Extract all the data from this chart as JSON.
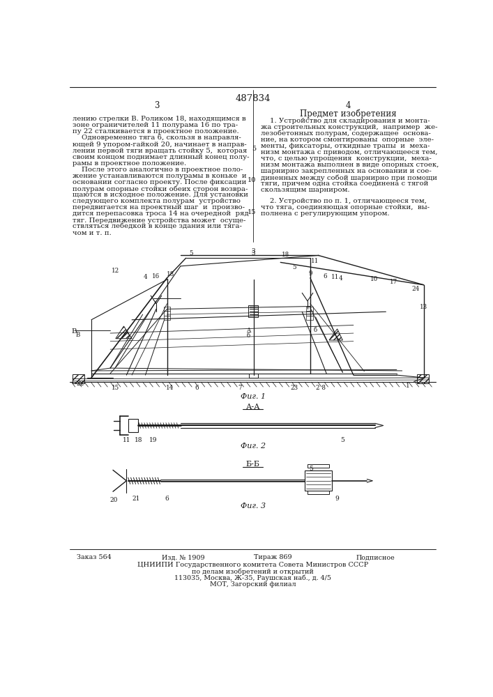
{
  "patent_number": "487834",
  "left_col_text": [
    "лению стрелки В. Роликом 18, находящимся в",
    "зоне ограничителей 11 полурама 16 по тра-",
    "пу 22 сталкивается в проектное положение.",
    "    Одновременно тяга 6, скользя в направля-",
    "ющей 9 упором-гайкой 20, начинает в направ-",
    "лении первой тяги вращать стойку 5,  которая",
    "своим концом поднимает длинный конец полу-",
    "рамы в проектное положение.",
    "    После этого аналогично в проектное поло-",
    "жение устанавливаются полурамы в коньке  и",
    "основании согласно проекту. После фиксации",
    "полурам опорные стойки обеих сторон возвра-",
    "щаются в исходное положение. Для установки",
    "следующего комплекта полурам  устройство",
    "передвигается на проектный шаг  и  произво-",
    "дится перепасовка троса 14 на очередной  ряд",
    "тяг. Передвижение устройства может  осуще-",
    "ствляться лебедкой в конце здания или тяга-",
    "чом и т. п."
  ],
  "right_col_header": "Предмет изобретения",
  "right_col_claim1": [
    "    1. Устройство для складирования и монта-",
    "жа строительных конструкций,  например  же-",
    "лезобетонных полурам, содержащее  основа-",
    "ние, на котором смонтированы  опорные  эле-",
    "менты, фиксаторы, откидные трапы  и  меха-",
    "низм монтажа с приводом, отличающееся тем,",
    "что, с целью упрощения  конструкции,  меха-",
    "низм монтажа выполнен в виде опорных стоек,",
    "шарнирно закрепленных на основании и сое-",
    "диненных между собой шарнирно при помощи",
    "тяги, причем одна стойка соединена с тягой",
    "скользящим шарниром."
  ],
  "right_col_claim2": [
    "    2. Устройство по п. 1, отличающееся тем,",
    "что тяга, соединяющая опорные стойки,  вы-",
    "полнена с регулирующим упором."
  ],
  "line_numbers_right": [
    [
      4,
      "5"
    ],
    [
      9,
      "10"
    ],
    [
      14,
      "15"
    ]
  ],
  "fig1_caption": "Фиг. 1",
  "fig2_caption": "Фиг. 2",
  "fig3_caption": "Фиг. 3",
  "aa_label": "А-А",
  "bb_label": "Б-Б",
  "bottom_lines": [
    [
      "left",
      30,
      "Заказ 564"
    ],
    [
      "left",
      170,
      "Изд. № 1909"
    ],
    [
      "left",
      330,
      "Тираж 869"
    ],
    [
      "left",
      530,
      "Подписное"
    ]
  ],
  "bottom_line2": "ЦНИИПИ Государственного комитета Совета Министров СССР",
  "bottom_line3": "по делам изобретений и открытий",
  "bottom_line4": "113035, Москва, Ж-35, Раушская наб., д. 4/5",
  "bottom_line5": "МОТ, Загорский филиал",
  "bg_color": "#ffffff",
  "ink": "#1a1a1a"
}
